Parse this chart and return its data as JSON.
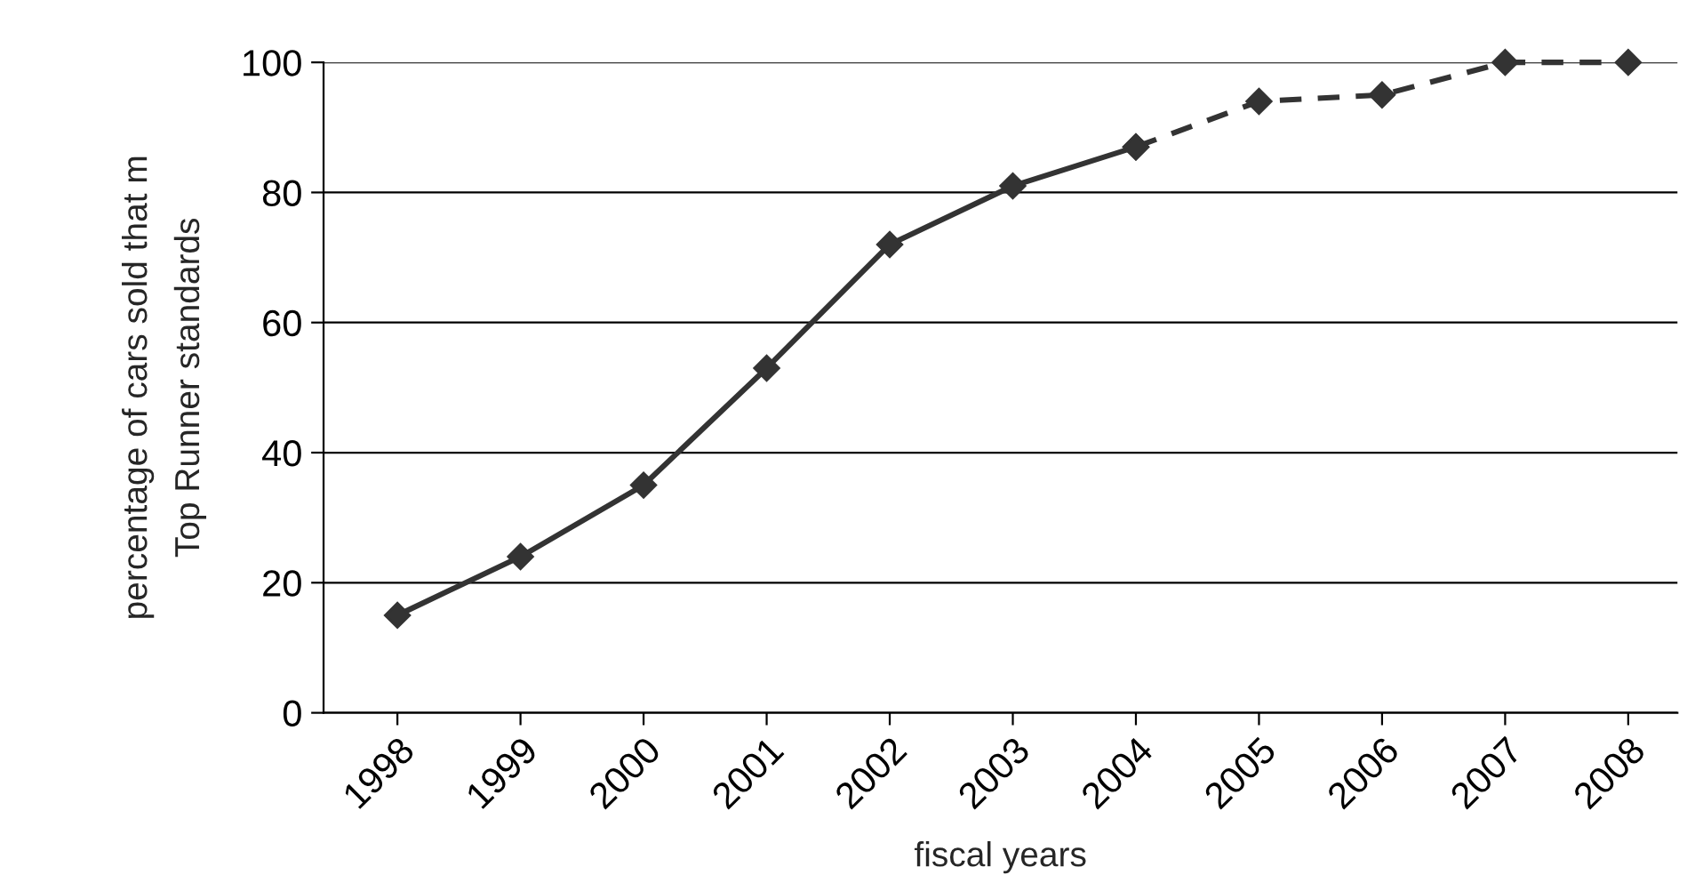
{
  "chart_data": {
    "type": "line",
    "xlabel": "fiscal years",
    "ylabel": "percentage of cars sold that m\nTop Runner standards",
    "categories": [
      "1998",
      "1999",
      "2000",
      "2001",
      "2002",
      "2003",
      "2004",
      "2005",
      "2006",
      "2007",
      "2008"
    ],
    "series": [
      {
        "color": "#333333",
        "line_style": "solid",
        "values": [
          15,
          24,
          35,
          53,
          72,
          81,
          87,
          null,
          null,
          null,
          null
        ]
      },
      {
        "color": "#333333",
        "line_style": "dashed",
        "values": [
          null,
          null,
          null,
          null,
          null,
          null,
          87,
          94,
          95,
          100,
          100
        ]
      }
    ],
    "ylim": [
      0,
      100
    ],
    "yticks": [
      0,
      20,
      40,
      60,
      80,
      100
    ],
    "grid": "y",
    "marker": "diamond"
  }
}
